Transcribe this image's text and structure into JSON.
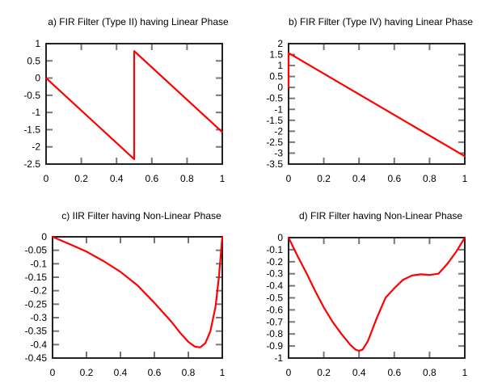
{
  "chart_data": [
    {
      "type": "line",
      "title": "a) FIR Filter (Type II) having Linear Phase",
      "xlim": [
        0,
        1
      ],
      "ylim": [
        -2.5,
        1
      ],
      "xticks": [
        "0",
        "0.2",
        "0.4",
        "0.6",
        "0.8",
        "1"
      ],
      "yticks": [
        "1",
        "0.5",
        "0",
        "-0.5",
        "-1",
        "-1.5",
        "-2",
        "-2.5"
      ],
      "grid": false,
      "color": "#ff0000",
      "x": [
        0,
        0.5,
        0.5,
        1
      ],
      "y": [
        0,
        -2.356,
        0.785,
        -1.571
      ]
    },
    {
      "type": "line",
      "title": "b) FIR Filter (Type IV) having Linear Phase",
      "xlim": [
        0,
        1
      ],
      "ylim": [
        -3.5,
        2
      ],
      "xticks": [
        "0",
        "0.2",
        "0.4",
        "0.6",
        "0.8",
        "1"
      ],
      "yticks": [
        "2",
        "1.5",
        "1",
        "0.5",
        "0",
        "-0.5",
        "-1",
        "-1.5",
        "-2",
        "-2.5",
        "-3",
        "-3.5"
      ],
      "grid": false,
      "color": "#ff0000",
      "x": [
        0,
        0,
        1
      ],
      "y": [
        0,
        1.571,
        -3.141
      ]
    },
    {
      "type": "line",
      "title": "c) IIR Filter having Non-Linear Phase",
      "xlim": [
        0,
        1
      ],
      "ylim": [
        -0.45,
        0
      ],
      "xticks": [
        "0",
        "0.2",
        "0.4",
        "0.6",
        "0.8",
        "1"
      ],
      "yticks": [
        "0",
        "-0.05",
        "-0.1",
        "-0.15",
        "-0.2",
        "-0.25",
        "-0.3",
        "-0.35",
        "-0.4",
        "-0.45"
      ],
      "grid": false,
      "color": "#ff0000",
      "x": [
        0,
        0.1,
        0.2,
        0.3,
        0.4,
        0.5,
        0.6,
        0.7,
        0.75,
        0.8,
        0.84,
        0.87,
        0.9,
        0.93,
        0.96,
        0.98,
        1
      ],
      "y": [
        0,
        -0.027,
        -0.055,
        -0.09,
        -0.13,
        -0.18,
        -0.245,
        -0.315,
        -0.355,
        -0.39,
        -0.408,
        -0.41,
        -0.395,
        -0.35,
        -0.26,
        -0.15,
        0
      ]
    },
    {
      "type": "line",
      "title": "d) FIR Filter having Non-Linear Phase",
      "xlim": [
        0,
        1
      ],
      "ylim": [
        -1,
        0
      ],
      "xticks": [
        "0",
        "0.2",
        "0.4",
        "0.6",
        "0.8",
        "1"
      ],
      "yticks": [
        "0",
        "-0.1",
        "-0.2",
        "-0.3",
        "-0.4",
        "-0.5",
        "-0.6",
        "-0.7",
        "-0.8",
        "-0.9",
        "-1"
      ],
      "grid": false,
      "color": "#ff0000",
      "x": [
        0,
        0.05,
        0.1,
        0.15,
        0.2,
        0.25,
        0.3,
        0.35,
        0.38,
        0.4,
        0.42,
        0.45,
        0.5,
        0.55,
        0.6,
        0.65,
        0.7,
        0.75,
        0.8,
        0.85,
        0.9,
        0.95,
        1
      ],
      "y": [
        0,
        -0.15,
        -0.29,
        -0.44,
        -0.58,
        -0.7,
        -0.8,
        -0.89,
        -0.93,
        -0.94,
        -0.93,
        -0.86,
        -0.67,
        -0.5,
        -0.42,
        -0.35,
        -0.315,
        -0.305,
        -0.31,
        -0.3,
        -0.22,
        -0.12,
        0
      ]
    }
  ]
}
